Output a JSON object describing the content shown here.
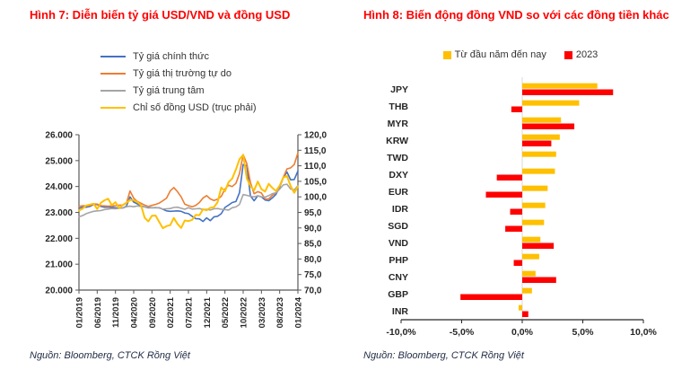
{
  "left_panel": {
    "title": "Hình 7: Diễn biến tỷ giá USD/VND và đồng USD",
    "source": "Nguồn: Bloomberg, CTCK Rồng Việt"
  },
  "right_panel": {
    "title": "Hình 8: Biến động đồng VND so với các đồng tiền khác",
    "source": "Nguồn: Bloomberg, CTCK Rồng Việt"
  },
  "colors": {
    "title_red": "#ff0000",
    "axis_text": "#262626",
    "axis_line": "#595959",
    "gridline": "#d9d9d9",
    "series_blue": "#4472C4",
    "series_orange": "#ED7D31",
    "series_gray": "#A5A5A5",
    "series_yellow": "#FFC000",
    "bar_red": "#FF0000"
  },
  "chart_data": [
    {
      "type": "line",
      "title": "Hình 7: Diễn biến tỷ giá USD/VND và đồng USD",
      "x_points": 61,
      "x_tick_indices": [
        0,
        5,
        10,
        15,
        20,
        25,
        30,
        35,
        40,
        45,
        50,
        55,
        60
      ],
      "x_tick_labels": [
        "01/2019",
        "06/2019",
        "11/2019",
        "04/2020",
        "09/2020",
        "02/2021",
        "07/2021",
        "12/2021",
        "05/2022",
        "10/2022",
        "03/2023",
        "08/2023",
        "01/2024"
      ],
      "left_axis": {
        "min": 20000,
        "max": 26000,
        "tick_values": [
          20000,
          21000,
          22000,
          23000,
          24000,
          25000,
          26000
        ],
        "tick_labels": [
          "20.000",
          "21.000",
          "22.000",
          "23.000",
          "24.000",
          "25.000",
          "26.000"
        ]
      },
      "right_axis": {
        "min": 70,
        "max": 120,
        "tick_values": [
          70,
          75,
          80,
          85,
          90,
          95,
          100,
          105,
          110,
          115,
          120
        ],
        "tick_labels": [
          "70,0",
          "75,0",
          "80,0",
          "85,0",
          "90,0",
          "95,0",
          "100,0",
          "105,0",
          "110,0",
          "115,0",
          "120,0"
        ]
      },
      "series": [
        {
          "name": "Tỷ giá chính thức",
          "color": "#4472C4",
          "axis": "left",
          "values": [
            23160,
            23200,
            23200,
            23230,
            23310,
            23300,
            23230,
            23200,
            23200,
            23200,
            23180,
            23170,
            23170,
            23240,
            23600,
            23400,
            23330,
            23250,
            23210,
            23180,
            23180,
            23180,
            23180,
            23120,
            23060,
            23040,
            23050,
            23060,
            23040,
            22980,
            22950,
            22850,
            22760,
            22750,
            22650,
            22790,
            22680,
            22830,
            22850,
            22950,
            23190,
            23280,
            23380,
            23420,
            23760,
            24850,
            24800,
            23630,
            23450,
            23640,
            23600,
            23480,
            23450,
            23560,
            23700,
            23980,
            24340,
            24560,
            24260,
            24270,
            24600
          ]
        },
        {
          "name": "Tỷ giá thị trường tự do",
          "color": "#ED7D31",
          "axis": "left",
          "values": [
            23230,
            23260,
            23250,
            23270,
            23330,
            23320,
            23260,
            23250,
            23240,
            23250,
            23260,
            23280,
            23280,
            23350,
            23830,
            23550,
            23420,
            23350,
            23280,
            23230,
            23270,
            23310,
            23360,
            23450,
            23550,
            23830,
            23960,
            23800,
            23600,
            23320,
            23260,
            23220,
            23270,
            23380,
            23560,
            23650,
            23520,
            23460,
            23510,
            23620,
            23900,
            24050,
            24000,
            24120,
            24500,
            25230,
            24880,
            24150,
            23720,
            23800,
            23750,
            23520,
            23520,
            23660,
            23760,
            24020,
            24350,
            24680,
            24720,
            24850,
            25300
          ]
        },
        {
          "name": "Tỷ giá trung tâm",
          "color": "#A5A5A5",
          "axis": "left",
          "values": [
            22830,
            22880,
            22950,
            23000,
            23040,
            23060,
            23070,
            23110,
            23130,
            23150,
            23140,
            23160,
            23170,
            23220,
            23240,
            23220,
            23250,
            23230,
            23210,
            23200,
            23180,
            23190,
            23170,
            23130,
            23140,
            23150,
            23190,
            23200,
            23160,
            23120,
            23180,
            23130,
            23140,
            23150,
            23110,
            23120,
            23090,
            23140,
            23150,
            23120,
            23110,
            23090,
            23180,
            23210,
            23310,
            23690,
            23660,
            23620,
            23600,
            23640,
            23600,
            23590,
            23650,
            23720,
            23760,
            23900,
            24060,
            24090,
            23900,
            23870,
            24030
          ]
        },
        {
          "name": "Chỉ số đồng USD (trục phải)",
          "color": "#FFC000",
          "axis": "right",
          "values": [
            95.6,
            96.2,
            97.2,
            97.5,
            97.8,
            96.1,
            98.1,
            98.9,
            99.4,
            97.3,
            98.3,
            96.4,
            97.4,
            98.1,
            99.0,
            99.0,
            98.3,
            97.4,
            93.3,
            92.1,
            93.9,
            94.0,
            91.9,
            89.9,
            90.6,
            90.9,
            93.2,
            91.3,
            90.0,
            92.4,
            92.2,
            92.6,
            94.2,
            94.1,
            96.0,
            95.7,
            96.5,
            96.7,
            98.3,
            103.0,
            101.8,
            104.7,
            105.9,
            108.8,
            112.1,
            113.5,
            105.9,
            103.5,
            102.1,
            104.9,
            102.5,
            101.7,
            104.2,
            102.9,
            101.9,
            103.6,
            106.2,
            106.7,
            103.5,
            101.3,
            103.3
          ]
        }
      ]
    },
    {
      "type": "bar",
      "orientation": "horizontal",
      "title": "Hình 8: Biến động đồng VND so với các đồng tiền khác",
      "categories": [
        "JPY",
        "THB",
        "MYR",
        "KRW",
        "TWD",
        "DXY",
        "EUR",
        "IDR",
        "SGD",
        "VND",
        "PHP",
        "CNY",
        "GBP",
        "INR"
      ],
      "series": [
        {
          "name": "Từ đầu năm đến nay",
          "color": "#FFC000",
          "values": [
            6.2,
            4.7,
            3.2,
            3.1,
            2.8,
            2.7,
            2.1,
            1.9,
            1.8,
            1.5,
            1.4,
            1.1,
            0.8,
            -0.3
          ]
        },
        {
          "name": "2023",
          "color": "#FF0000",
          "values": [
            7.5,
            -0.9,
            4.3,
            2.4,
            0.0,
            -2.1,
            -3.0,
            -1.0,
            -1.4,
            2.6,
            -0.7,
            2.8,
            -5.1,
            0.5
          ]
        }
      ],
      "xlim": [
        -10,
        10
      ],
      "x_tick_values": [
        -10,
        -5,
        0,
        5,
        10
      ],
      "x_tick_labels": [
        "-10,0%",
        "-5,0%",
        "0,0%",
        "5,0%",
        "10,0%"
      ],
      "legend_position": "top"
    }
  ]
}
